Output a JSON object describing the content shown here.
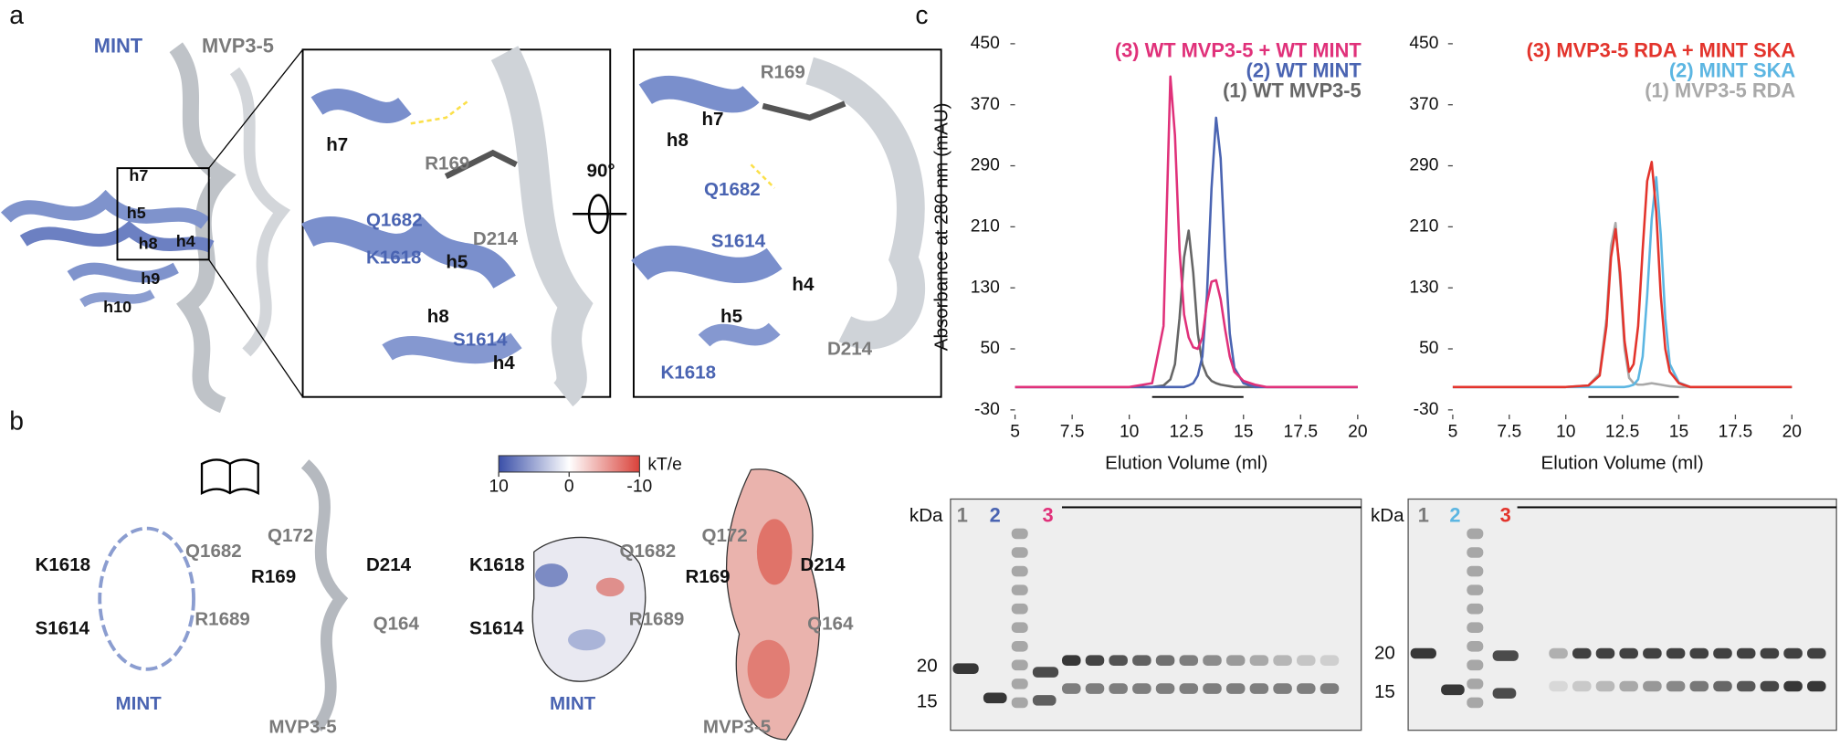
{
  "panel_a": {
    "label": "a",
    "mint": "MINT",
    "mvp": "MVP3-5",
    "helices": [
      "h7",
      "h5",
      "h8",
      "h4",
      "h9",
      "h10"
    ],
    "zoom1": [
      "h7",
      "R169",
      "Q1682",
      "K1618",
      "D214",
      "h5",
      "h8",
      "S1614",
      "h4"
    ],
    "rotation": "90°",
    "zoom2": [
      "R169",
      "h7",
      "h8",
      "Q1682",
      "S1614",
      "h4",
      "h5",
      "D214",
      "K1618"
    ]
  },
  "panel_b": {
    "label": "b",
    "cartoon": {
      "mint_labels": [
        "K1618",
        "Q1682",
        "S1614",
        "R1689"
      ],
      "mint": "MINT",
      "mvp_labels": [
        "Q172",
        "R169",
        "D214",
        "Q164"
      ],
      "mvp": "MVP3-5"
    },
    "colorbar": {
      "range": [
        10,
        -10
      ],
      "ticks": [
        10,
        0,
        -10
      ],
      "unit": "kT/e"
    },
    "surface": {
      "mint_labels": [
        "K1618",
        "Q1682",
        "S1614",
        "R1689"
      ],
      "mint": "MINT",
      "mvp_labels": [
        "Q172",
        "R169",
        "D214",
        "Q164"
      ],
      "mvp": "MVP3-5"
    }
  },
  "panel_c": {
    "label": "c",
    "gels": [
      {
        "unit": "kDa",
        "lanes": [
          "1",
          "2",
          "3"
        ],
        "markers": [
          "20",
          "15"
        ]
      },
      {
        "unit": "kDa",
        "lanes": [
          "1",
          "2",
          "3"
        ],
        "markers": [
          "20",
          "15"
        ]
      }
    ]
  },
  "chart_data": [
    {
      "type": "line",
      "ylabel": "Absorbance at 280 nm (mAU)",
      "xlabel": "Elution Volume (ml)",
      "x": [
        5,
        10,
        11,
        11.5,
        11.8,
        12,
        12.2,
        12.4,
        12.6,
        12.8,
        13,
        13.2,
        13.4,
        13.6,
        13.8,
        14,
        14.2,
        14.4,
        14.6,
        15,
        15.5,
        16,
        20
      ],
      "series": [
        {
          "name": "(3) WT MVP3-5 + WT MINT",
          "color": "#e0317a",
          "values": [
            0,
            0,
            5,
            80,
            407,
            330,
            180,
            95,
            65,
            52,
            50,
            65,
            110,
            138,
            140,
            115,
            75,
            40,
            20,
            8,
            3,
            0,
            0
          ]
        },
        {
          "name": "(2) WT MINT",
          "color": "#4a64b2",
          "values": [
            0,
            0,
            0,
            0,
            0,
            0,
            0,
            0,
            2,
            5,
            15,
            40,
            120,
            260,
            353,
            300,
            170,
            70,
            25,
            5,
            0,
            0,
            0
          ]
        },
        {
          "name": "(1) WT MVP3-5",
          "color": "#666666",
          "values": [
            0,
            0,
            0,
            2,
            10,
            30,
            90,
            170,
            205,
            150,
            70,
            30,
            15,
            8,
            5,
            3,
            2,
            1,
            0,
            0,
            0,
            0,
            0
          ]
        }
      ],
      "xlim": [
        5,
        20
      ],
      "ylim": [
        -30,
        450
      ],
      "xticks": [
        5,
        7.5,
        10,
        12.5,
        15,
        17.5,
        20
      ],
      "yticks": [
        -30,
        50,
        130,
        210,
        290,
        370,
        450
      ],
      "fraction_bar": [
        11,
        15
      ]
    },
    {
      "type": "line",
      "xlabel": "Elution Volume (ml)",
      "x": [
        5,
        10,
        11,
        11.5,
        11.8,
        12,
        12.2,
        12.4,
        12.6,
        12.8,
        13,
        13.2,
        13.4,
        13.6,
        13.8,
        14,
        14.2,
        14.4,
        14.6,
        15,
        15.5,
        16,
        20
      ],
      "series": [
        {
          "name": "(3) MVP3-5 RDA + MINT SKA",
          "color": "#e3342c",
          "values": [
            0,
            0,
            2,
            15,
            80,
            170,
            207,
            150,
            60,
            20,
            30,
            80,
            180,
            270,
            295,
            230,
            120,
            50,
            20,
            5,
            0,
            0,
            0
          ]
        },
        {
          "name": "(2) MINT SKA",
          "color": "#5cb6e2",
          "values": [
            0,
            0,
            0,
            0,
            0,
            0,
            0,
            0,
            0,
            1,
            3,
            10,
            40,
            120,
            220,
            275,
            200,
            90,
            30,
            6,
            0,
            0,
            0
          ]
        },
        {
          "name": "(1) MVP3-5 RDA",
          "color": "#a9a9a9",
          "values": [
            0,
            0,
            2,
            18,
            90,
            185,
            215,
            140,
            50,
            12,
            5,
            3,
            3,
            4,
            5,
            4,
            3,
            2,
            1,
            0,
            0,
            0,
            0
          ]
        }
      ],
      "xlim": [
        5,
        20
      ],
      "ylim": [
        -30,
        450
      ],
      "xticks": [
        5,
        7.5,
        10,
        12.5,
        15,
        17.5,
        20
      ],
      "yticks": [
        -30,
        50,
        130,
        210,
        290,
        370,
        450
      ],
      "fraction_bar": [
        11,
        15
      ]
    }
  ]
}
